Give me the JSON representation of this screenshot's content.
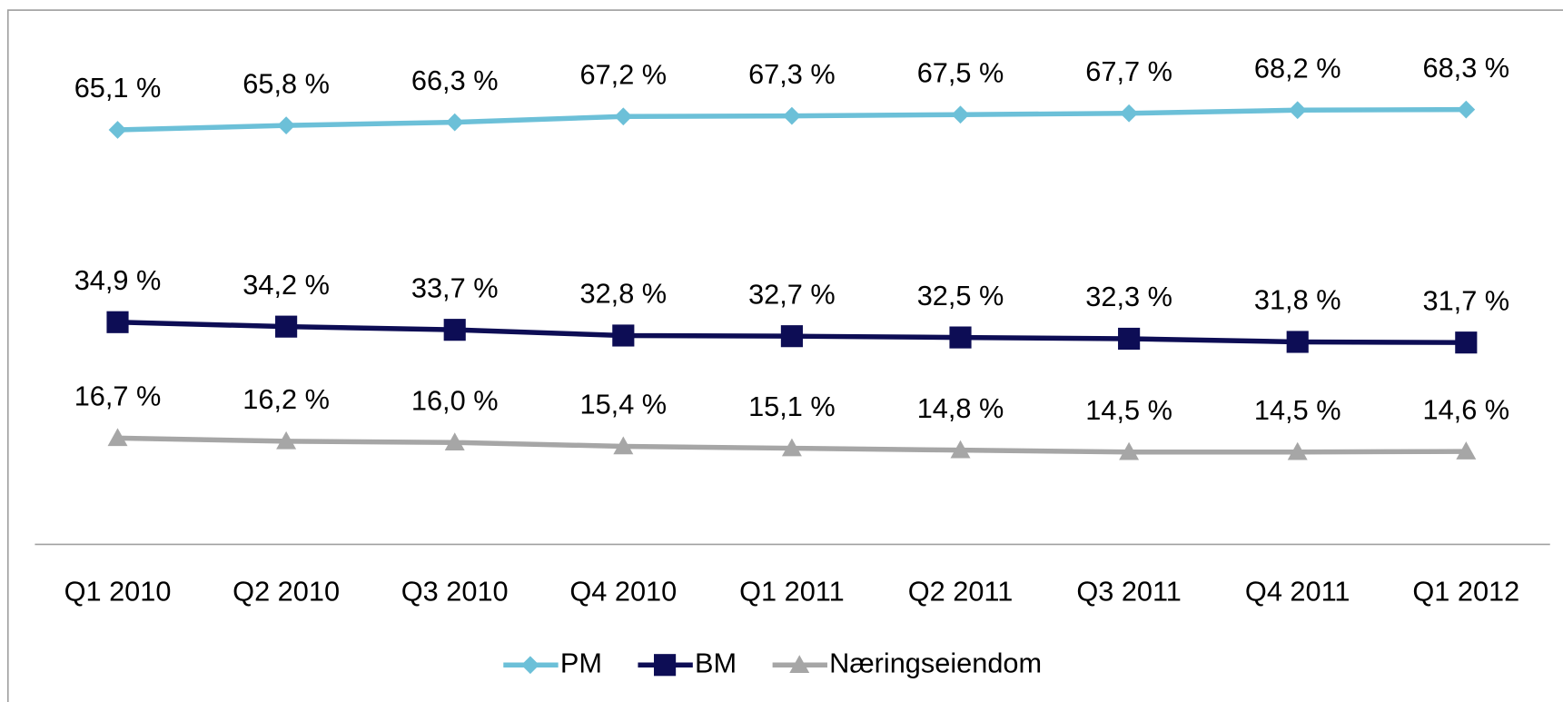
{
  "chart_data": {
    "type": "line",
    "categories": [
      "Q1 2010",
      "Q2 2010",
      "Q3 2010",
      "Q4 2010",
      "Q1 2011",
      "Q2 2011",
      "Q3 2011",
      "Q4 2011",
      "Q1 2012"
    ],
    "series": [
      {
        "name": "PM",
        "color": "#6cc0d8",
        "marker": "diamond",
        "values": [
          65.1,
          65.8,
          66.3,
          67.2,
          67.3,
          67.5,
          67.7,
          68.2,
          68.3
        ],
        "value_labels": [
          "65,1 %",
          "65,8 %",
          "66,3 %",
          "67,2 %",
          "67,3 %",
          "67,5 %",
          "67,7 %",
          "68,2 %",
          "68,3 %"
        ]
      },
      {
        "name": "BM",
        "color": "#0d0d55",
        "marker": "square",
        "values": [
          34.9,
          34.2,
          33.7,
          32.8,
          32.7,
          32.5,
          32.3,
          31.8,
          31.7
        ],
        "value_labels": [
          "34,9 %",
          "34,2 %",
          "33,7 %",
          "32,8 %",
          "32,7 %",
          "32,5 %",
          "32,3 %",
          "31,8 %",
          "31,7 %"
        ]
      },
      {
        "name": "Næringseiendom",
        "color": "#a6a6a6",
        "marker": "triangle",
        "values": [
          16.7,
          16.2,
          16.0,
          15.4,
          15.1,
          14.8,
          14.5,
          14.5,
          14.6
        ],
        "value_labels": [
          "16,7 %",
          "16,2 %",
          "16,0 %",
          "15,4 %",
          "15,1 %",
          "14,8 %",
          "14,5 %",
          "14,5 %",
          "14,6 %"
        ]
      }
    ],
    "ylim": [
      0,
      80
    ],
    "legend": "bottom"
  }
}
